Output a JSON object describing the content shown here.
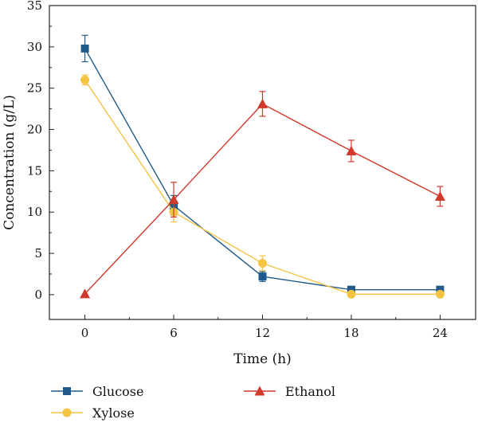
{
  "chart_data": {
    "type": "line",
    "title": "",
    "xlabel": "Time (h)",
    "ylabel": "Concentration (g/L)",
    "x": [
      0,
      6,
      12,
      18,
      24
    ],
    "xticks": [
      0,
      6,
      12,
      18,
      24
    ],
    "xlim": [
      -2.4,
      26.4
    ],
    "yticks": [
      0,
      5,
      10,
      15,
      20,
      25,
      30,
      35
    ],
    "ylim": [
      -3,
      35
    ],
    "grid": false,
    "legend_placement": "bottom",
    "series": [
      {
        "name": "Glucose",
        "color": "#1f5a8a",
        "marker": "square",
        "values": [
          29.8,
          10.8,
          2.2,
          0.6,
          0.6
        ],
        "errors": [
          1.6,
          1.2,
          0.6,
          0.1,
          0.1
        ]
      },
      {
        "name": "Xylose",
        "color": "#f5c342",
        "marker": "circle",
        "values": [
          26.0,
          10.0,
          3.8,
          0.05,
          0.05
        ],
        "errors": [
          0.6,
          1.2,
          0.9,
          0.05,
          0.05
        ]
      },
      {
        "name": "Ethanol",
        "color": "#d1392b",
        "marker": "triangle",
        "values": [
          0.1,
          11.5,
          23.1,
          17.4,
          11.9
        ],
        "errors": [
          0.05,
          2.1,
          1.5,
          1.3,
          1.2
        ]
      }
    ]
  }
}
